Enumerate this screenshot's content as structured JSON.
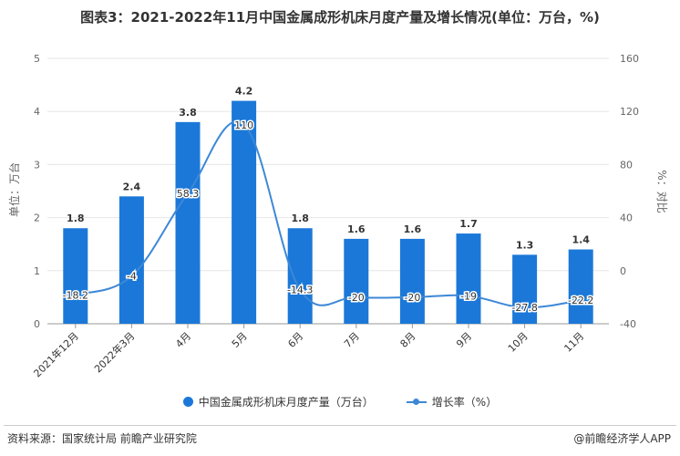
{
  "title": "图表3：2021-2022年11月中国金属成形机床月度产量及增长情况(单位：万台，%)",
  "footer": {
    "source": "资料来源：国家统计局 前瞻产业研究院",
    "brand": "@前瞻经济学人APP"
  },
  "chart_data": {
    "type": "bar",
    "categories": [
      "2021年12月",
      "2022年3月",
      "4月",
      "5月",
      "6月",
      "7月",
      "8月",
      "9月",
      "10月",
      "11月"
    ],
    "series": [
      {
        "name": "中国金属成形机床月度产量（万台）",
        "type": "bar",
        "axis": "left",
        "color": "#1b78d8",
        "values": [
          1.8,
          2.4,
          3.8,
          4.2,
          1.8,
          1.6,
          1.6,
          1.7,
          1.3,
          1.4
        ],
        "labels": [
          "1.8",
          "2.4",
          "3.8",
          "4.2",
          "1.8",
          "1.6",
          "1.6",
          "1.7",
          "1.3",
          "1.4"
        ]
      },
      {
        "name": "增长率（%）",
        "type": "line",
        "axis": "right",
        "color": "#3d88d6",
        "values": [
          -18.2,
          -4,
          58.3,
          110,
          -14.3,
          -20,
          -20,
          -19,
          -27.8,
          -22.2
        ],
        "labels": [
          "-18.2",
          "-4",
          "58.3",
          "110",
          "-14.3",
          "-20",
          "-20",
          "-19",
          "-27.8",
          "-22.2"
        ]
      }
    ],
    "y_left": {
      "label": "单位：万台",
      "min": 0,
      "max": 5,
      "ticks": [
        "0",
        "1",
        "2",
        "3",
        "4",
        "5"
      ]
    },
    "y_right": {
      "label": "%：对比",
      "min": -40,
      "max": 160,
      "ticks": [
        "-40",
        "0",
        "40",
        "80",
        "120",
        "160"
      ]
    },
    "grid": true,
    "legend_position": "bottom"
  }
}
